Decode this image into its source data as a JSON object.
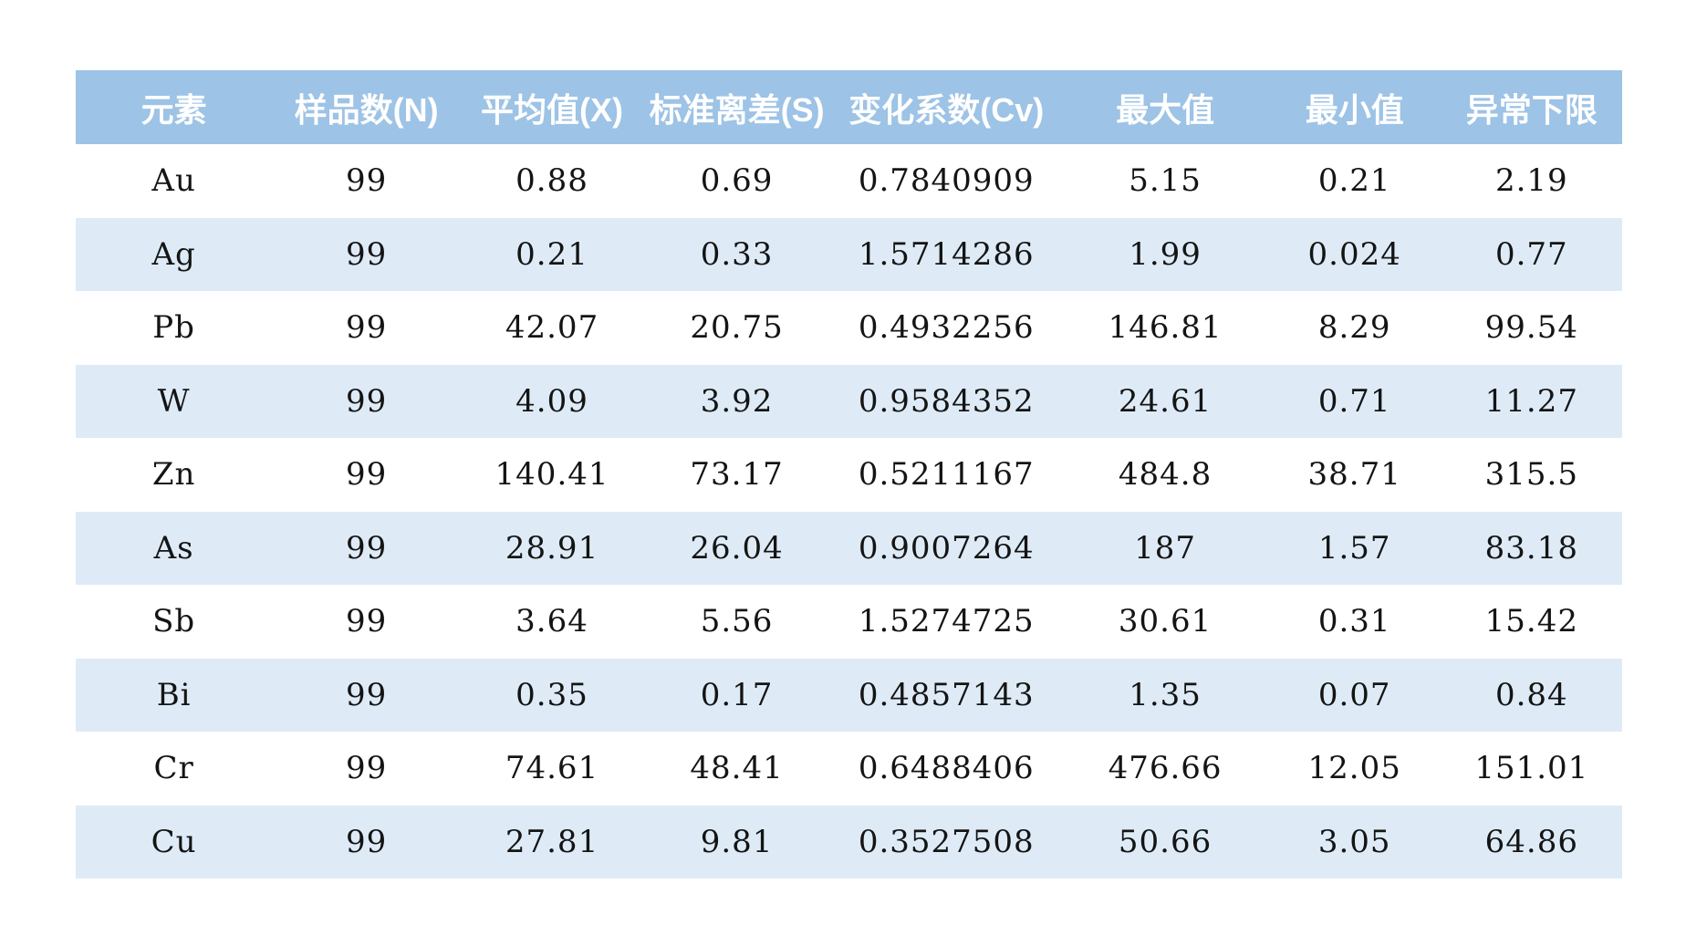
{
  "chart_data": {
    "type": "table",
    "columns": [
      "元素",
      "样品数(N)",
      "平均值(X)",
      "标准离差(S)",
      "变化系数(Cv)",
      "最大值",
      "最小值",
      "异常下限"
    ],
    "rows": [
      [
        "Au",
        "99",
        "0.88",
        "0.69",
        "0.7840909",
        "5.15",
        "0.21",
        "2.19"
      ],
      [
        "Ag",
        "99",
        "0.21",
        "0.33",
        "1.5714286",
        "1.99",
        "0.024",
        "0.77"
      ],
      [
        "Pb",
        "99",
        "42.07",
        "20.75",
        "0.4932256",
        "146.81",
        "8.29",
        "99.54"
      ],
      [
        "W",
        "99",
        "4.09",
        "3.92",
        "0.9584352",
        "24.61",
        "0.71",
        "11.27"
      ],
      [
        "Zn",
        "99",
        "140.41",
        "73.17",
        "0.5211167",
        "484.8",
        "38.71",
        "315.5"
      ],
      [
        "As",
        "99",
        "28.91",
        "26.04",
        "0.9007264",
        "187",
        "1.57",
        "83.18"
      ],
      [
        "Sb",
        "99",
        "3.64",
        "5.56",
        "1.5274725",
        "30.61",
        "0.31",
        "15.42"
      ],
      [
        "Bi",
        "99",
        "0.35",
        "0.17",
        "0.4857143",
        "1.35",
        "0.07",
        "0.84"
      ],
      [
        "Cr",
        "99",
        "74.61",
        "48.41",
        "0.6488406",
        "476.66",
        "12.05",
        "151.01"
      ],
      [
        "Cu",
        "99",
        "27.81",
        "9.81",
        "0.3527508",
        "50.66",
        "3.05",
        "64.86"
      ]
    ],
    "layout": {
      "banded_rows": true,
      "grid_borders": false,
      "alignment": "center"
    }
  },
  "colors": {
    "header_bg": "#9DC3E6",
    "band_bg": "#DEEBF7",
    "header_text": "#FFFFFF",
    "body_text": "#141414",
    "page_bg": "#FFFFFF"
  }
}
